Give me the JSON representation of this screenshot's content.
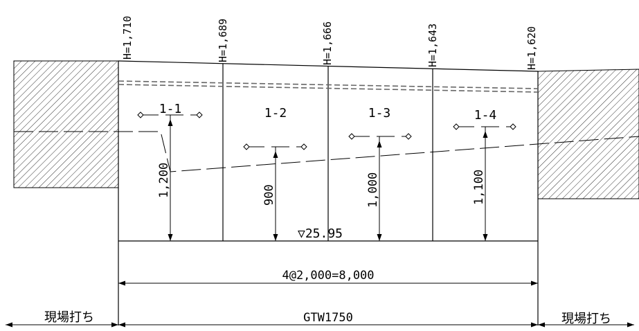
{
  "heights": [
    "H=1,710",
    "H=1,689",
    "H=1,666",
    "H=1,643",
    "H=1,620"
  ],
  "sections": [
    "1-1",
    "1-2",
    "1-3",
    "1-4"
  ],
  "depths": [
    "1,200",
    "900",
    "1,000",
    "1,100"
  ],
  "water_level": "▽25.95",
  "span": "4@2,000=8,000",
  "product": "GTW1750",
  "cast_in_place_left": "現場打ち",
  "cast_in_place_right": "現場打ち"
}
